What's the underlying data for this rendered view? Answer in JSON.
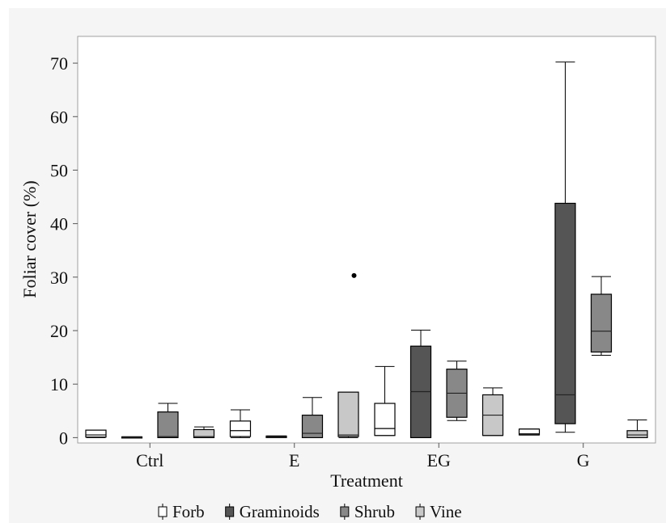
{
  "chart_data": {
    "type": "boxplot",
    "xlabel": "Treatment",
    "ylabel": "Foliar cover (%)",
    "categories": [
      "Ctrl",
      "E",
      "EG",
      "G"
    ],
    "yticks": [
      0,
      10,
      20,
      30,
      40,
      50,
      60,
      70
    ],
    "ylim": [
      -1,
      75
    ],
    "grid": false,
    "legend_position": "bottom",
    "series": [
      {
        "name": "Forb",
        "color": "#ffffff",
        "boxes": [
          {
            "min": 0,
            "q1": 0.1,
            "median": 0.5,
            "q3": 1.4,
            "max": 1.4,
            "outliers": []
          },
          {
            "min": 0,
            "q1": 0.2,
            "median": 1.3,
            "q3": 3.1,
            "max": 5.2,
            "outliers": []
          },
          {
            "min": 0.4,
            "q1": 0.4,
            "median": 1.7,
            "q3": 6.4,
            "max": 13.3,
            "outliers": []
          },
          {
            "min": 0.5,
            "q1": 0.5,
            "median": 0.7,
            "q3": 1.6,
            "max": 1.6,
            "outliers": []
          }
        ]
      },
      {
        "name": "Graminoids",
        "color": "#555555",
        "boxes": [
          {
            "min": 0,
            "q1": 0,
            "median": 0.05,
            "q3": 0.15,
            "max": 0.15,
            "outliers": []
          },
          {
            "min": 0,
            "q1": 0,
            "median": 0.1,
            "q3": 0.3,
            "max": 0.3,
            "outliers": []
          },
          {
            "min": 0,
            "q1": 0,
            "median": 8.6,
            "q3": 17.1,
            "max": 20.1,
            "outliers": []
          },
          {
            "min": 1,
            "q1": 2.6,
            "median": 8,
            "q3": 43.8,
            "max": 70.2,
            "outliers": []
          }
        ]
      },
      {
        "name": "Shrub",
        "color": "#888888",
        "boxes": [
          {
            "min": 0,
            "q1": 0,
            "median": 0.2,
            "q3": 4.8,
            "max": 6.4,
            "outliers": []
          },
          {
            "min": 0,
            "q1": 0,
            "median": 0.8,
            "q3": 4.2,
            "max": 7.5,
            "outliers": []
          },
          {
            "min": 3.2,
            "q1": 3.8,
            "median": 8.3,
            "q3": 12.8,
            "max": 14.3,
            "outliers": []
          },
          {
            "min": 15.4,
            "q1": 16,
            "median": 19.9,
            "q3": 26.8,
            "max": 30.1,
            "outliers": []
          }
        ]
      },
      {
        "name": "Vine",
        "color": "#c8c8c8",
        "boxes": [
          {
            "min": 0,
            "q1": 0,
            "median": 0.2,
            "q3": 1.5,
            "max": 2,
            "outliers": []
          },
          {
            "min": 0,
            "q1": 0.2,
            "median": 0.5,
            "q3": 8.5,
            "max": 8.5,
            "outliers": [
              30.3
            ]
          },
          {
            "min": 0.4,
            "q1": 0.4,
            "median": 4.2,
            "q3": 8,
            "max": 9.3,
            "outliers": []
          },
          {
            "min": 0,
            "q1": 0,
            "median": 0.5,
            "q3": 1.3,
            "max": 3.3,
            "outliers": []
          }
        ]
      }
    ]
  }
}
